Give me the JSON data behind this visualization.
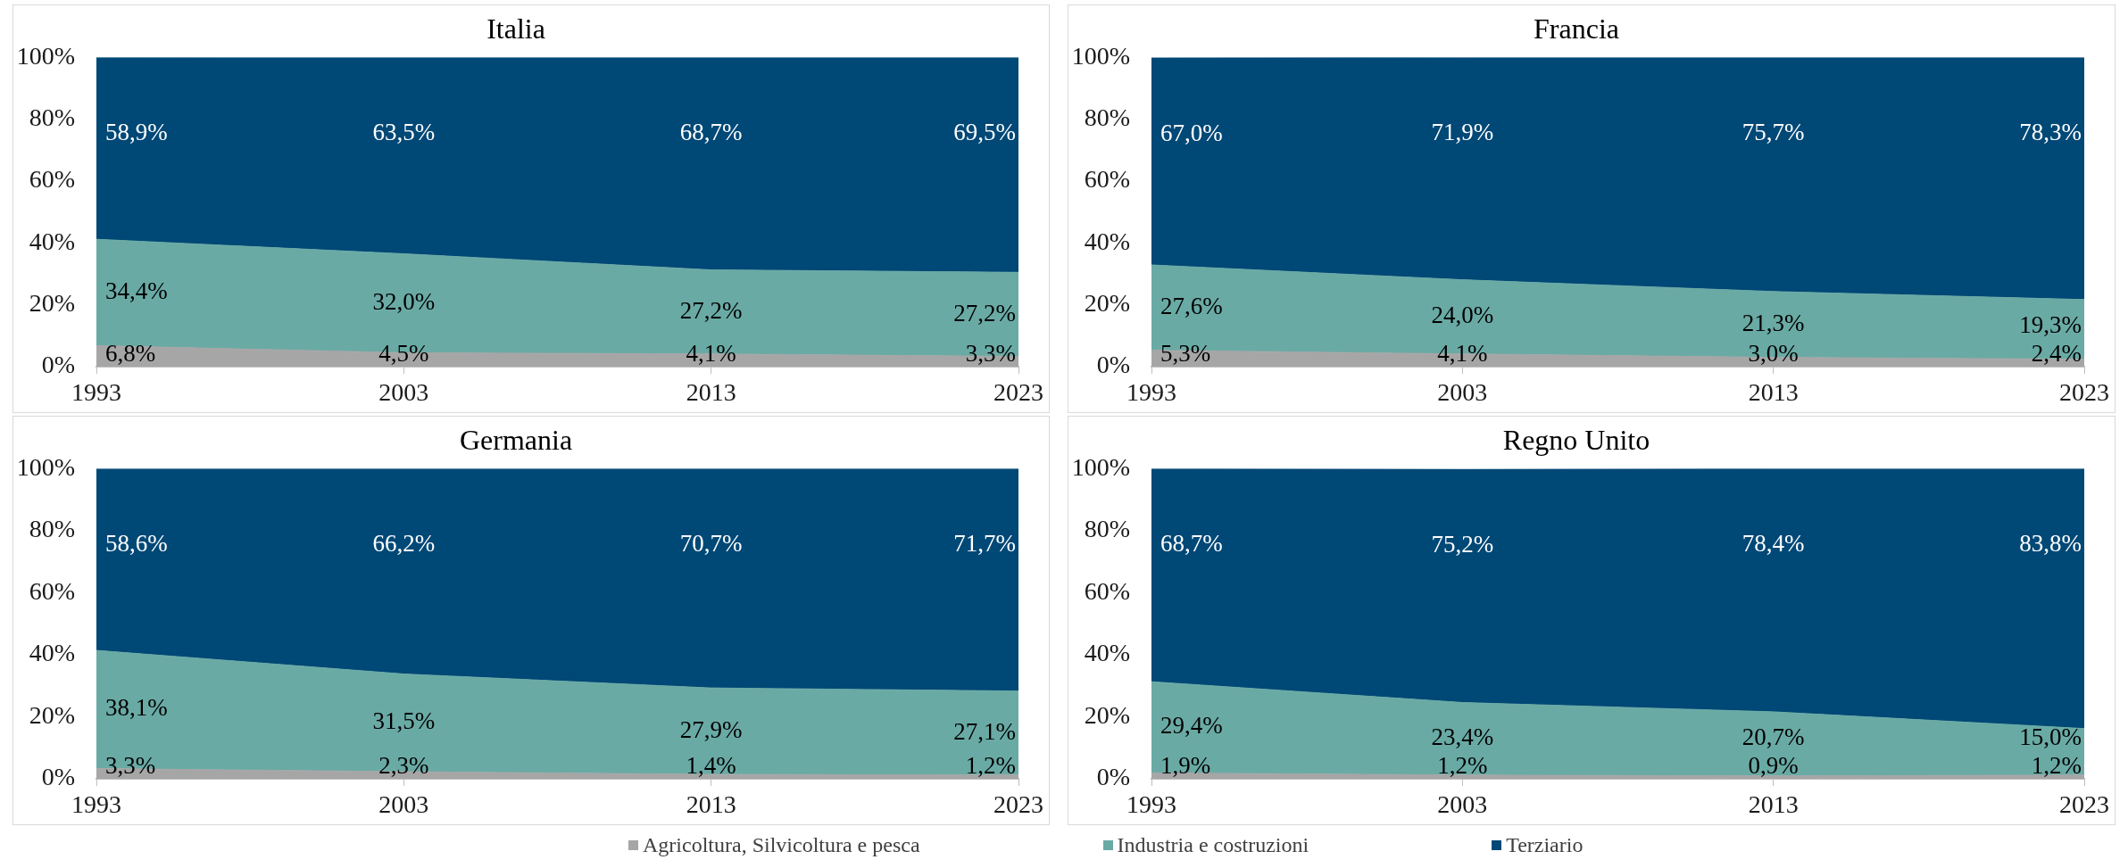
{
  "chart_data": [
    {
      "type": "area",
      "title": "Italia",
      "stacked": true,
      "legend": "bottom",
      "categories": [
        "1993",
        "2003",
        "2013",
        "2023"
      ],
      "ylim": [
        0,
        100
      ],
      "yticks": [
        {
          "value": 0,
          "label": "0%"
        },
        {
          "value": 20,
          "label": "20%"
        },
        {
          "value": 40,
          "label": "40%"
        },
        {
          "value": 60,
          "label": "60%"
        },
        {
          "value": 80,
          "label": "80%"
        },
        {
          "value": 100,
          "label": "100%"
        }
      ],
      "series": [
        {
          "name": "Agricoltura, Silvicoltura e pesca",
          "color": "#a6a6a6",
          "values": [
            6.8,
            4.5,
            4.1,
            3.3
          ],
          "value_labels": [
            "6,8%",
            "4,5%",
            "4,1%",
            "3,3%"
          ]
        },
        {
          "name": "Industria e costruzioni",
          "color": "#6aaaa5",
          "values": [
            34.4,
            32.0,
            27.2,
            27.2
          ],
          "value_labels": [
            "34,4%",
            "32,0%",
            "27,2%",
            "27,2%"
          ]
        },
        {
          "name": "Terziario",
          "color": "#004876",
          "values": [
            58.9,
            63.5,
            68.7,
            69.5
          ],
          "value_labels": [
            "58,9%",
            "63,5%",
            "68,7%",
            "69,5%"
          ]
        }
      ]
    },
    {
      "type": "area",
      "title": "Francia",
      "stacked": true,
      "categories": [
        "1993",
        "2003",
        "2013",
        "2023"
      ],
      "ylim": [
        0,
        100
      ],
      "yticks": [
        {
          "value": 0,
          "label": "0%"
        },
        {
          "value": 20,
          "label": "20%"
        },
        {
          "value": 40,
          "label": "40%"
        },
        {
          "value": 60,
          "label": "60%"
        },
        {
          "value": 80,
          "label": "80%"
        },
        {
          "value": 100,
          "label": "100%"
        }
      ],
      "series": [
        {
          "color": "#a6a6a6",
          "values": [
            5.3,
            4.1,
            3.0,
            2.4
          ],
          "value_labels": [
            "5,3%",
            "4,1%",
            "3,0%",
            "2,4%"
          ]
        },
        {
          "color": "#6aaaa5",
          "values": [
            27.6,
            24.0,
            21.3,
            19.3
          ],
          "value_labels": [
            "27,6%",
            "24,0%",
            "21,3%",
            "19,3%"
          ]
        },
        {
          "color": "#004876",
          "values": [
            67.0,
            71.9,
            75.7,
            78.3
          ],
          "value_labels": [
            "67,0%",
            "71,9%",
            "75,7%",
            "78,3%"
          ]
        }
      ]
    },
    {
      "type": "area",
      "title": "Germania",
      "stacked": true,
      "categories": [
        "1993",
        "2003",
        "2013",
        "2023"
      ],
      "ylim": [
        0,
        100
      ],
      "yticks": [
        {
          "value": 0,
          "label": "0%"
        },
        {
          "value": 20,
          "label": "20%"
        },
        {
          "value": 40,
          "label": "40%"
        },
        {
          "value": 60,
          "label": "60%"
        },
        {
          "value": 80,
          "label": "80%"
        },
        {
          "value": 100,
          "label": "100%"
        }
      ],
      "series": [
        {
          "color": "#a6a6a6",
          "values": [
            3.3,
            2.3,
            1.4,
            1.2
          ],
          "value_labels": [
            "3,3%",
            "2,3%",
            "1,4%",
            "1,2%"
          ]
        },
        {
          "color": "#6aaaa5",
          "values": [
            38.1,
            31.5,
            27.9,
            27.1
          ],
          "value_labels": [
            "38,1%",
            "31,5%",
            "27,9%",
            "27,1%"
          ]
        },
        {
          "color": "#004876",
          "values": [
            58.6,
            66.2,
            70.7,
            71.7
          ],
          "value_labels": [
            "58,6%",
            "66,2%",
            "70,7%",
            "71,7%"
          ]
        }
      ]
    },
    {
      "type": "area",
      "title": "Regno Unito",
      "stacked": true,
      "categories": [
        "1993",
        "2003",
        "2013",
        "2023"
      ],
      "ylim": [
        0,
        100
      ],
      "yticks": [
        {
          "value": 0,
          "label": "0%"
        },
        {
          "value": 20,
          "label": "20%"
        },
        {
          "value": 40,
          "label": "40%"
        },
        {
          "value": 60,
          "label": "60%"
        },
        {
          "value": 80,
          "label": "80%"
        },
        {
          "value": 100,
          "label": "100%"
        }
      ],
      "series": [
        {
          "color": "#a6a6a6",
          "values": [
            1.9,
            1.2,
            0.9,
            1.2
          ],
          "value_labels": [
            "1,9%",
            "1,2%",
            "0,9%",
            "1,2%"
          ]
        },
        {
          "color": "#6aaaa5",
          "values": [
            29.4,
            23.4,
            20.7,
            15.0
          ],
          "value_labels": [
            "29,4%",
            "23,4%",
            "20,7%",
            "15,0%"
          ]
        },
        {
          "color": "#004876",
          "values": [
            68.7,
            75.2,
            78.4,
            83.8
          ],
          "value_labels": [
            "68,7%",
            "75,2%",
            "78,4%",
            "83,8%"
          ]
        }
      ]
    }
  ]
}
